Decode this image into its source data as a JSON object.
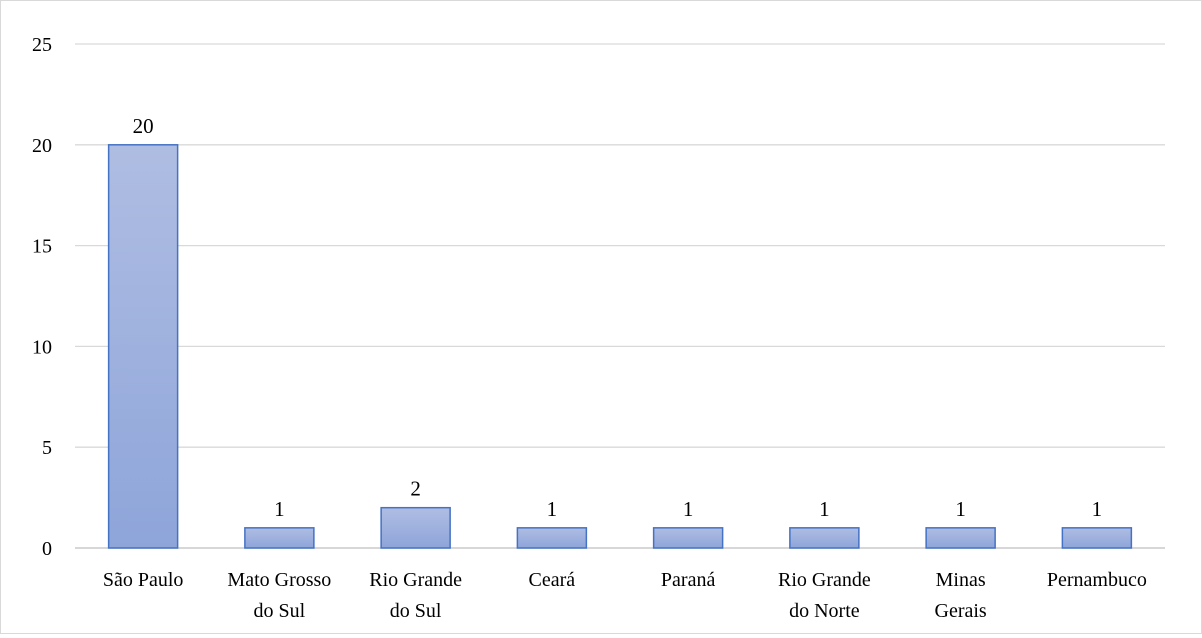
{
  "chart_data": {
    "type": "bar",
    "title": "",
    "xlabel": "",
    "ylabel": "",
    "categories": [
      [
        "São Paulo"
      ],
      [
        "Mato Grosso",
        "do Sul"
      ],
      [
        "Rio Grande",
        "do Sul"
      ],
      [
        "Ceará"
      ],
      [
        "Paraná"
      ],
      [
        "Rio Grande",
        "do Norte"
      ],
      [
        "Minas",
        "Gerais"
      ],
      [
        "Pernambuco"
      ]
    ],
    "values": [
      20,
      1,
      2,
      1,
      1,
      1,
      1,
      1
    ],
    "data_labels": [
      "20",
      "1",
      "2",
      "1",
      "1",
      "1",
      "1",
      "1"
    ],
    "ylim": [
      0,
      25
    ],
    "yticks": [
      0,
      5,
      10,
      15,
      20,
      25
    ],
    "ytick_labels": [
      "0",
      "5",
      "10",
      "15",
      "20",
      "25"
    ],
    "grid": true,
    "legend": "none",
    "colors": {
      "bar_top": "#AFBDE2",
      "bar_bottom": "#8EA5DA",
      "bar_border": "#4472C4",
      "grid": "#D9D9D9",
      "axis": "#BFBFBF"
    }
  }
}
